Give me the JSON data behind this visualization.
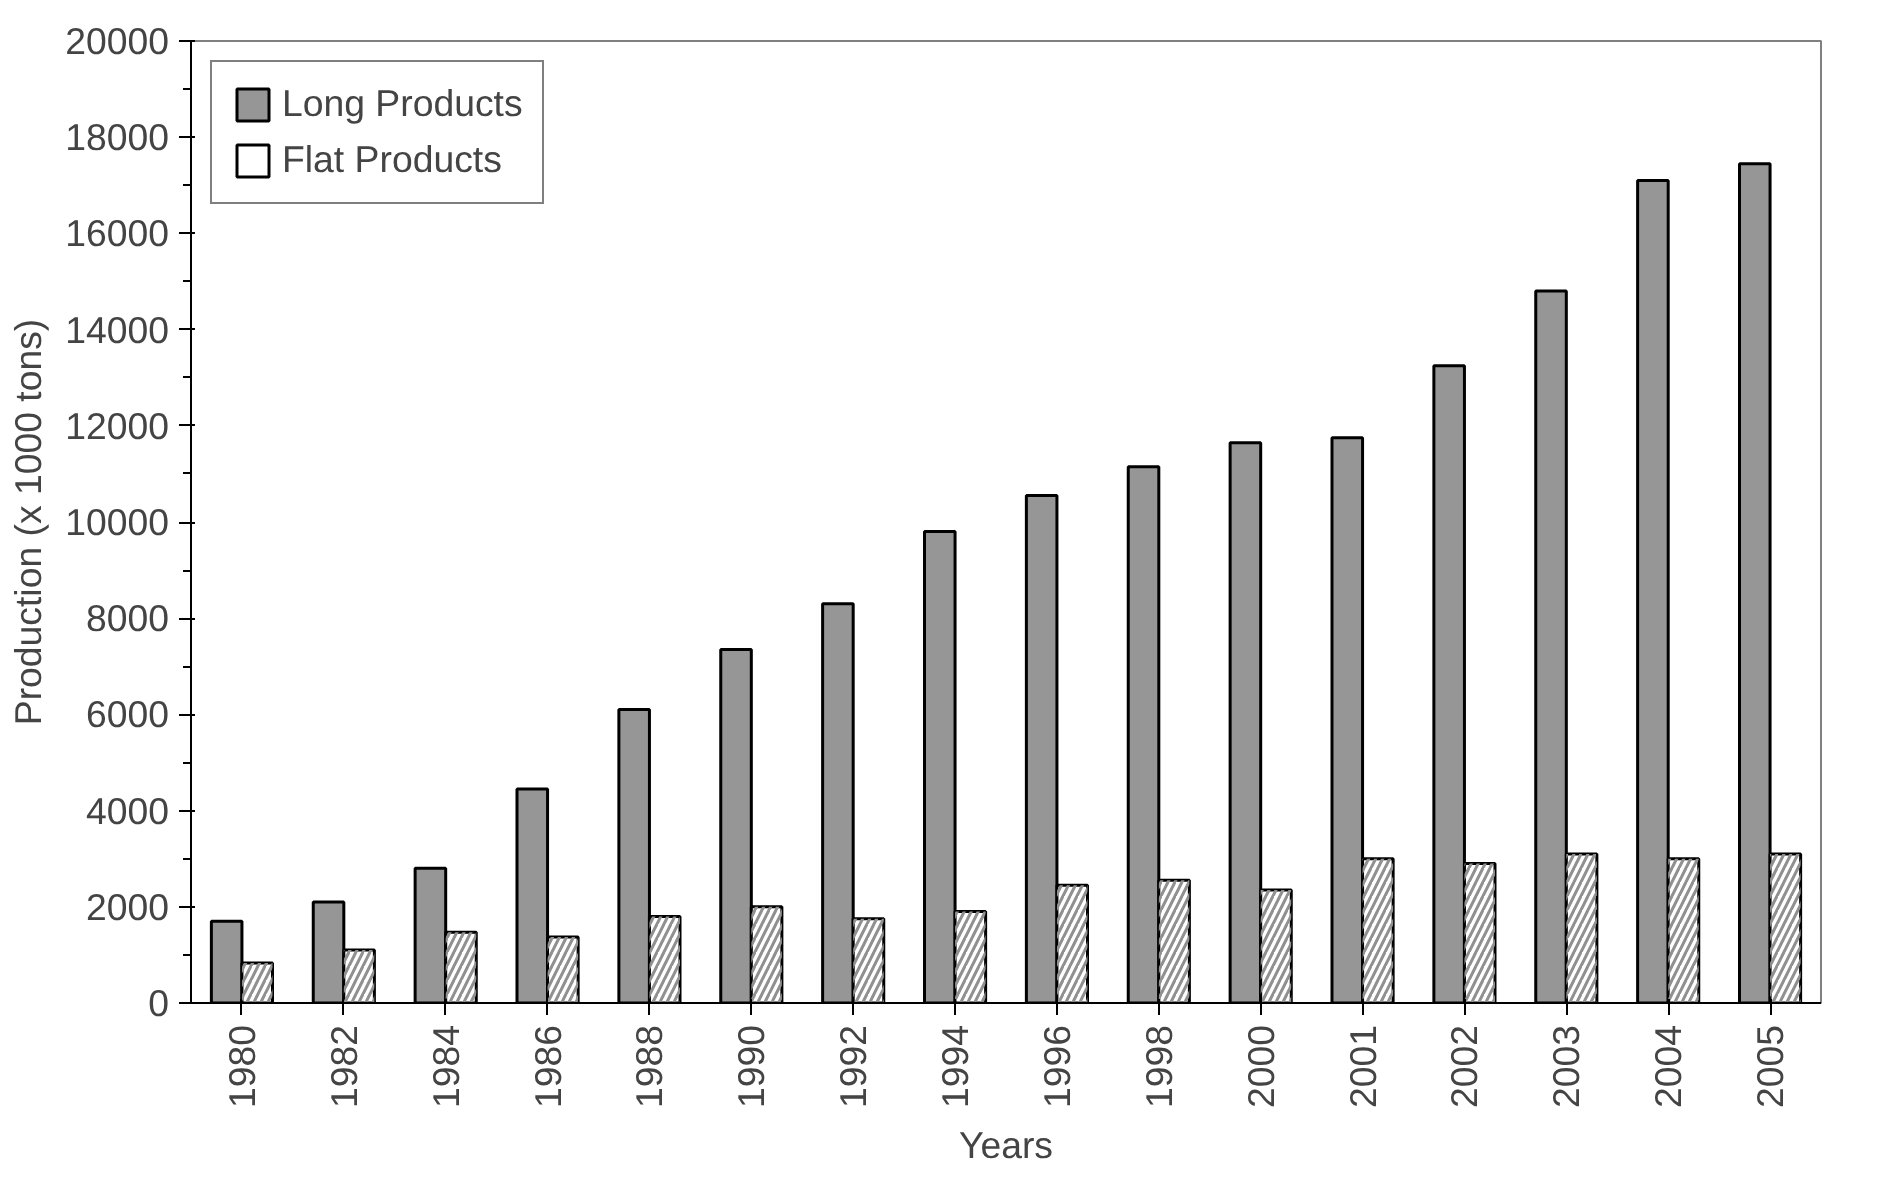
{
  "chart_data": {
    "type": "bar",
    "xlabel": "Years",
    "ylabel": "Production (x 1000 tons)",
    "categories": [
      "1980",
      "1982",
      "1984",
      "1986",
      "1988",
      "1990",
      "1992",
      "1994",
      "1996",
      "1998",
      "2000",
      "2001",
      "2002",
      "2003",
      "2004",
      "2005"
    ],
    "series": [
      {
        "name": "Long Products",
        "color": "#969696",
        "values": [
          1700,
          2100,
          2800,
          4450,
          6100,
          7350,
          8300,
          9800,
          10550,
          11150,
          11650,
          11750,
          13250,
          14800,
          17100,
          17450
        ]
      },
      {
        "name": "Flat Products",
        "color": "#ffffff",
        "values": [
          830,
          1100,
          1470,
          1370,
          1800,
          2000,
          1750,
          1900,
          2450,
          2550,
          2350,
          3000,
          2900,
          3100,
          3000,
          3100
        ]
      }
    ],
    "ylim": [
      0,
      20000
    ],
    "yticks": [
      0,
      2000,
      4000,
      6000,
      8000,
      10000,
      12000,
      14000,
      16000,
      18000,
      20000
    ],
    "grid": false,
    "legend": "top left"
  }
}
